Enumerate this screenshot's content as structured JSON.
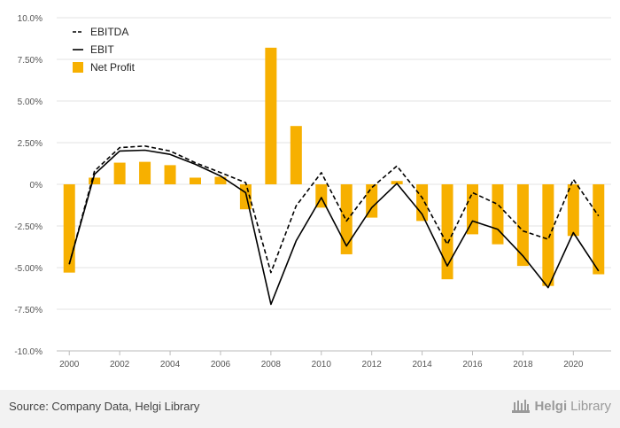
{
  "chart_data": {
    "type": "bar+line",
    "x": [
      2000,
      2001,
      2002,
      2003,
      2004,
      2005,
      2006,
      2007,
      2008,
      2009,
      2010,
      2011,
      2012,
      2013,
      2014,
      2015,
      2016,
      2017,
      2018,
      2019,
      2020,
      2021
    ],
    "x_tick_labels": [
      "2000",
      "2002",
      "2004",
      "2006",
      "2008",
      "2010",
      "2012",
      "2014",
      "2016",
      "2018",
      "2020"
    ],
    "y_tick_labels": [
      "10.0%",
      "7.50%",
      "5.00%",
      "2.50%",
      "0%",
      "-2.50%",
      "-5.00%",
      "-7.50%",
      "-10.0%"
    ],
    "ylim": [
      -10,
      10
    ],
    "y_unit": "%",
    "grid": true,
    "legend_position": "top-left",
    "series": [
      {
        "name": "EBITDA",
        "type": "line",
        "style": "dashed",
        "color": "#000000",
        "values": [
          -4.8,
          0.8,
          2.2,
          2.3,
          2.0,
          1.3,
          0.7,
          0.1,
          -5.3,
          -1.3,
          0.7,
          -2.2,
          -0.2,
          1.1,
          -0.8,
          -3.6,
          -0.5,
          -1.2,
          -2.8,
          -3.3,
          0.3,
          -1.9
        ]
      },
      {
        "name": "EBIT",
        "type": "line",
        "style": "solid",
        "color": "#000000",
        "values": [
          -4.8,
          0.6,
          2.0,
          2.05,
          1.8,
          1.2,
          0.5,
          -0.5,
          -7.2,
          -3.4,
          -0.8,
          -3.7,
          -1.4,
          0.05,
          -1.8,
          -4.9,
          -2.2,
          -2.7,
          -4.3,
          -6.2,
          -2.9,
          -5.2
        ]
      },
      {
        "name": "Net Profit",
        "type": "bar",
        "color": "#f7b000",
        "values": [
          -5.3,
          0.4,
          1.3,
          1.35,
          1.15,
          0.4,
          0.45,
          -1.5,
          8.2,
          3.5,
          -1.4,
          -4.2,
          -2.0,
          0.2,
          -2.2,
          -5.7,
          -3.0,
          -3.6,
          -4.9,
          -6.1,
          -3.1,
          -5.4
        ]
      }
    ]
  },
  "footer": {
    "source_text": "Source: Company Data, Helgi Library",
    "logo_text_1": "Helgi",
    "logo_text_2": "Library"
  }
}
